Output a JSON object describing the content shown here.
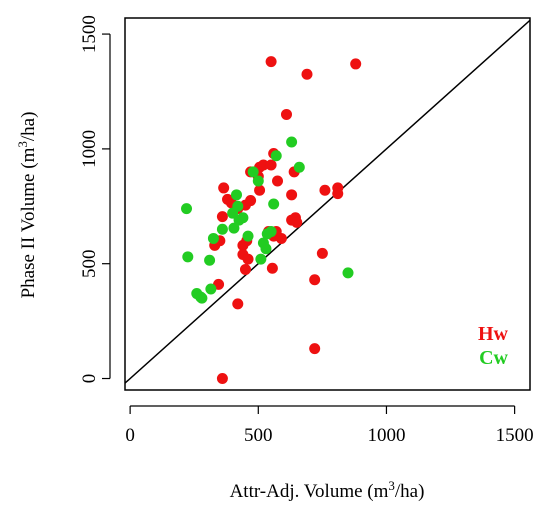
{
  "chart_data": {
    "type": "scatter",
    "title": "",
    "xlabel": {
      "pre": "Attr-Adj. Volume (m",
      "sup": "3",
      "post": "/ha)"
    },
    "ylabel": {
      "pre": "Phase II Volume (m",
      "sup": "3",
      "post": "/ha)"
    },
    "xlim": [
      -20,
      1560
    ],
    "ylim": [
      -50,
      1570
    ],
    "x_ticks": [
      0,
      500,
      1000,
      1500
    ],
    "y_ticks": [
      0,
      500,
      1000,
      1500
    ],
    "x_tick_labels": [
      "0",
      "500",
      "1000",
      "1500"
    ],
    "y_tick_labels": [
      "0",
      "500",
      "1000",
      "1500"
    ],
    "grid": false,
    "legend_position": "bottom-right",
    "reference_line": {
      "type": "1:1",
      "color": "#000000"
    },
    "series": [
      {
        "name": "Hw",
        "color": "#ee1111",
        "points": [
          [
            360,
            0
          ],
          [
            420,
            325
          ],
          [
            345,
            410
          ],
          [
            720,
            130
          ],
          [
            720,
            430
          ],
          [
            365,
            830
          ],
          [
            380,
            780
          ],
          [
            395,
            765
          ],
          [
            450,
            755
          ],
          [
            470,
            775
          ],
          [
            360,
            705
          ],
          [
            420,
            740
          ],
          [
            440,
            580
          ],
          [
            455,
            600
          ],
          [
            440,
            540
          ],
          [
            460,
            520
          ],
          [
            450,
            475
          ],
          [
            350,
            600
          ],
          [
            330,
            580
          ],
          [
            505,
            820
          ],
          [
            505,
            920
          ],
          [
            520,
            930
          ],
          [
            550,
            930
          ],
          [
            560,
            980
          ],
          [
            575,
            860
          ],
          [
            470,
            900
          ],
          [
            500,
            880
          ],
          [
            610,
            1150
          ],
          [
            550,
            1380
          ],
          [
            690,
            1325
          ],
          [
            880,
            1370
          ],
          [
            640,
            900
          ],
          [
            630,
            800
          ],
          [
            760,
            820
          ],
          [
            810,
            830
          ],
          [
            810,
            805
          ],
          [
            630,
            690
          ],
          [
            645,
            700
          ],
          [
            650,
            680
          ],
          [
            540,
            640
          ],
          [
            560,
            620
          ],
          [
            570,
            640
          ],
          [
            590,
            610
          ],
          [
            555,
            480
          ],
          [
            750,
            545
          ]
        ]
      },
      {
        "name": "Cw",
        "color": "#22cc22",
        "points": [
          [
            220,
            740
          ],
          [
            225,
            530
          ],
          [
            260,
            370
          ],
          [
            275,
            355
          ],
          [
            280,
            350
          ],
          [
            310,
            515
          ],
          [
            315,
            390
          ],
          [
            325,
            610
          ],
          [
            360,
            650
          ],
          [
            405,
            655
          ],
          [
            400,
            720
          ],
          [
            415,
            800
          ],
          [
            420,
            750
          ],
          [
            440,
            700
          ],
          [
            425,
            690
          ],
          [
            460,
            620
          ],
          [
            500,
            860
          ],
          [
            480,
            900
          ],
          [
            520,
            590
          ],
          [
            530,
            565
          ],
          [
            510,
            520
          ],
          [
            535,
            630
          ],
          [
            550,
            640
          ],
          [
            560,
            760
          ],
          [
            570,
            970
          ],
          [
            630,
            1030
          ],
          [
            660,
            920
          ],
          [
            850,
            460
          ]
        ]
      }
    ]
  }
}
